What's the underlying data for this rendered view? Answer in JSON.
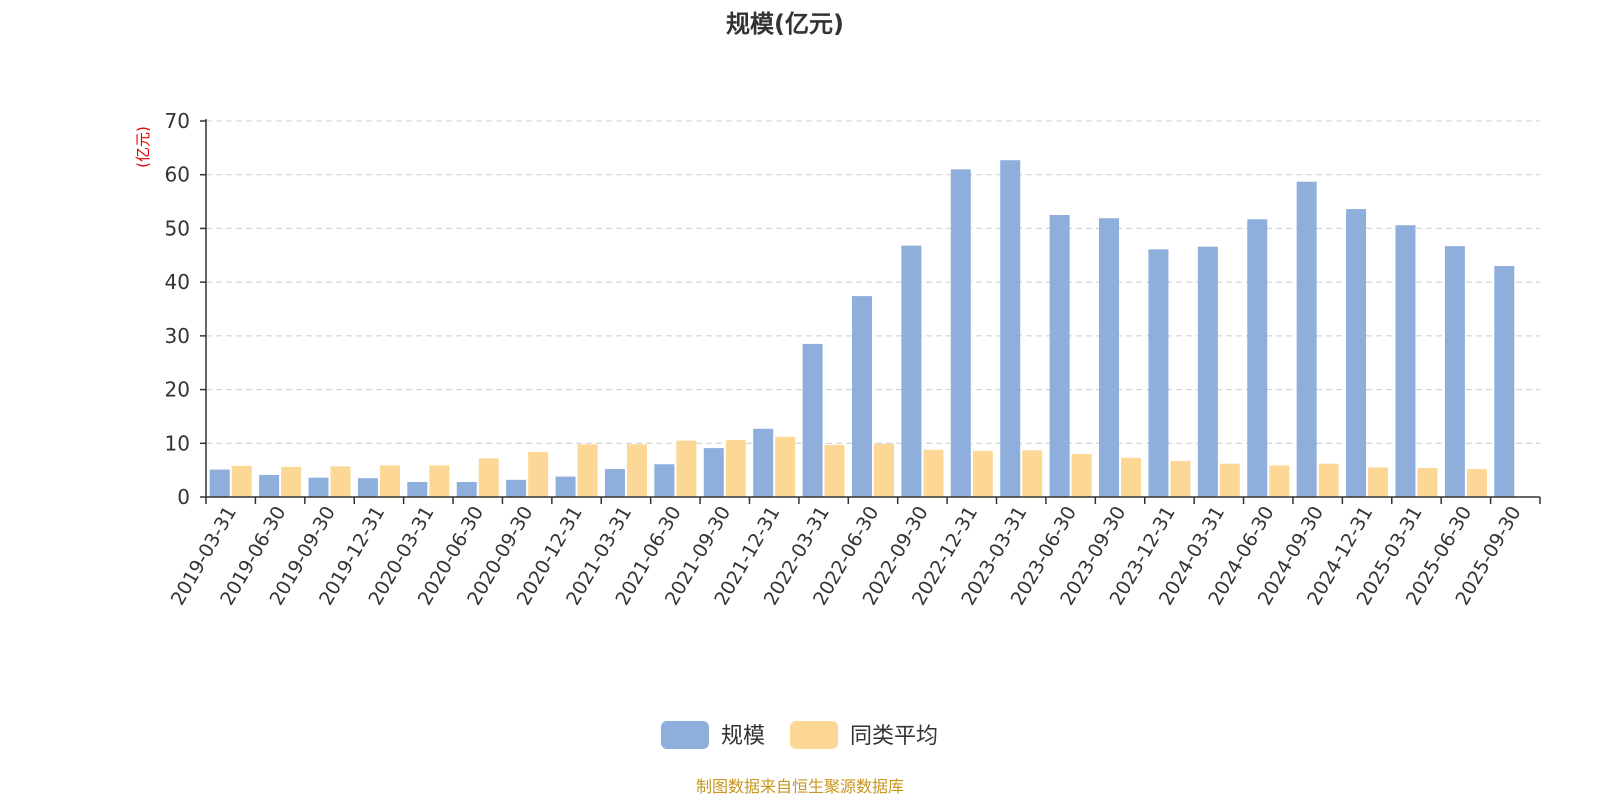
{
  "chart_data": {
    "type": "bar",
    "title": "规模(亿元)",
    "ylabel": "(亿元)",
    "ylim": [
      0,
      70
    ],
    "yticks": [
      0,
      10,
      20,
      30,
      40,
      50,
      60,
      70
    ],
    "grid": true,
    "legend_position": "bottom-center",
    "categories": [
      "2019-03-31",
      "2019-06-30",
      "2019-09-30",
      "2019-12-31",
      "2020-03-31",
      "2020-06-30",
      "2020-09-30",
      "2020-12-31",
      "2021-03-31",
      "2021-06-30",
      "2021-09-30",
      "2021-12-31",
      "2022-03-31",
      "2022-06-30",
      "2022-09-30",
      "2022-12-31",
      "2023-03-31",
      "2023-06-30",
      "2023-09-30",
      "2023-12-31",
      "2024-03-31",
      "2024-06-30",
      "2024-09-30",
      "2024-12-31",
      "2025-03-31",
      "2025-06-30",
      "2025-09-30"
    ],
    "series": [
      {
        "name": "规模",
        "color": "#8eaedb",
        "values": [
          5.1,
          4.1,
          3.6,
          3.5,
          2.8,
          2.8,
          3.2,
          3.8,
          5.2,
          6.1,
          9.1,
          12.7,
          28.5,
          37.4,
          46.8,
          61.0,
          62.7,
          52.5,
          51.9,
          46.1,
          46.6,
          51.7,
          58.7,
          53.6,
          50.6,
          46.7,
          43.0
        ]
      },
      {
        "name": "同类平均",
        "color": "#fdd795",
        "values": [
          5.8,
          5.6,
          5.7,
          5.9,
          5.9,
          7.2,
          8.4,
          9.8,
          9.8,
          10.5,
          10.6,
          11.2,
          9.7,
          9.9,
          8.8,
          8.6,
          8.7,
          8.0,
          7.3,
          6.7,
          6.2,
          5.9,
          6.2,
          5.5,
          5.4,
          5.2,
          null
        ]
      }
    ]
  },
  "footer": {
    "source": "制图数据来自恒生聚源数据库"
  }
}
